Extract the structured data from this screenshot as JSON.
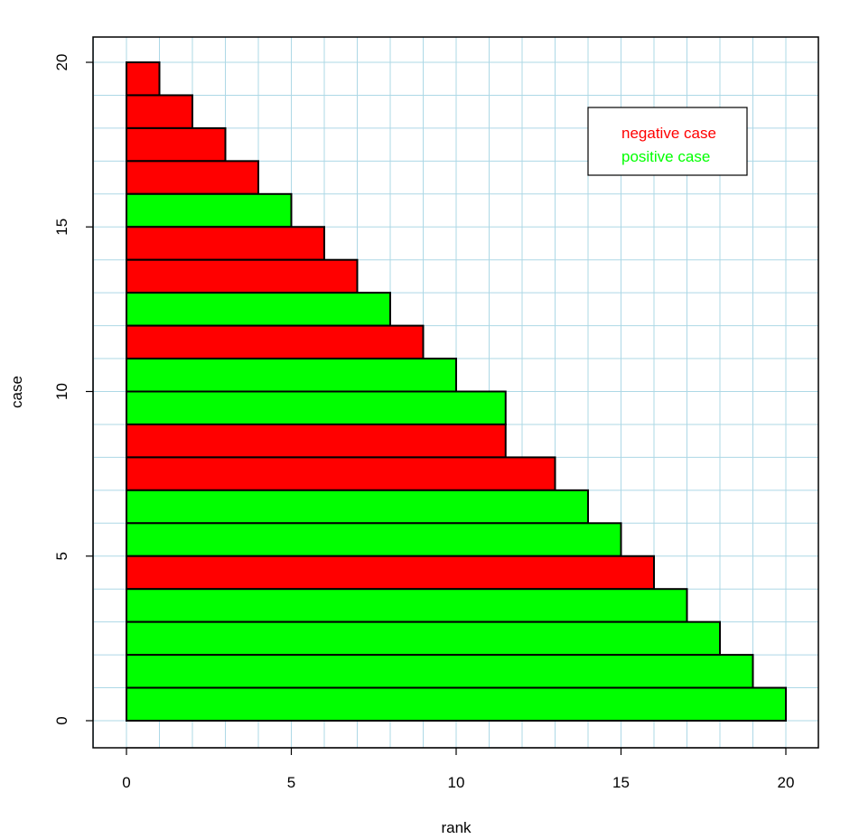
{
  "chart_data": {
    "type": "bar",
    "orientation": "horizontal",
    "title": "",
    "xlabel": "rank",
    "ylabel": "case",
    "xlim": [
      -1,
      21
    ],
    "ylim": [
      -0.8,
      21
    ],
    "x_ticks": [
      0,
      5,
      10,
      15,
      20
    ],
    "y_ticks": [
      0,
      5,
      10,
      15,
      20
    ],
    "grid": true,
    "grid_color": "#add8e6",
    "grid_step": 1,
    "legend": {
      "placement": "top-right",
      "entries": [
        {
          "label": "negative case",
          "color": "#ff0000"
        },
        {
          "label": "positive case",
          "color": "#00ff00"
        }
      ]
    },
    "colors": {
      "negative": "#ff0000",
      "positive": "#00ff00",
      "edge": "#000000"
    },
    "bars": [
      {
        "case": 20,
        "rank": 1,
        "class": "negative"
      },
      {
        "case": 19,
        "rank": 2,
        "class": "negative"
      },
      {
        "case": 18,
        "rank": 3,
        "class": "negative"
      },
      {
        "case": 17,
        "rank": 4,
        "class": "negative"
      },
      {
        "case": 16,
        "rank": 5,
        "class": "positive"
      },
      {
        "case": 15,
        "rank": 6,
        "class": "negative"
      },
      {
        "case": 14,
        "rank": 7,
        "class": "negative"
      },
      {
        "case": 13,
        "rank": 8,
        "class": "positive"
      },
      {
        "case": 12,
        "rank": 9,
        "class": "negative"
      },
      {
        "case": 11,
        "rank": 10,
        "class": "positive"
      },
      {
        "case": 10,
        "rank": 11.5,
        "class": "positive"
      },
      {
        "case": 9,
        "rank": 11.5,
        "class": "negative"
      },
      {
        "case": 8,
        "rank": 13,
        "class": "negative"
      },
      {
        "case": 7,
        "rank": 14,
        "class": "positive"
      },
      {
        "case": 6,
        "rank": 15,
        "class": "positive"
      },
      {
        "case": 5,
        "rank": 16,
        "class": "negative"
      },
      {
        "case": 4,
        "rank": 17,
        "class": "positive"
      },
      {
        "case": 3,
        "rank": 18,
        "class": "positive"
      },
      {
        "case": 2,
        "rank": 19,
        "class": "positive"
      },
      {
        "case": 1,
        "rank": 20,
        "class": "positive"
      }
    ]
  }
}
